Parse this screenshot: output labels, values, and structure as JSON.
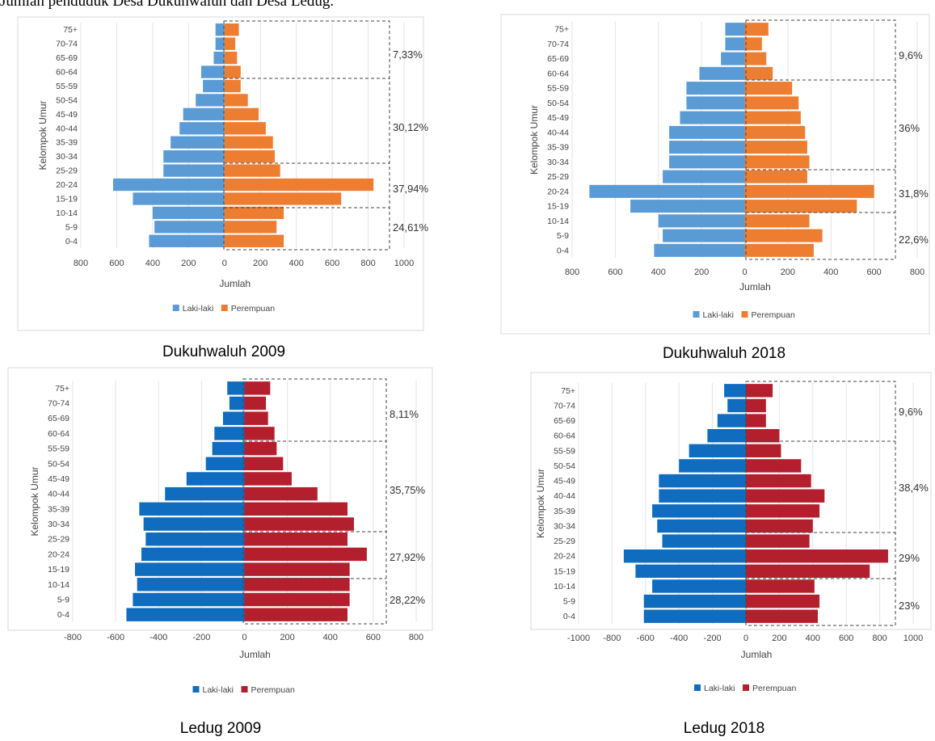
{
  "header": {
    "text": "Jumlah penduduk Desa Dukuhwaluh dan Desa Ledug."
  },
  "chart_data": [
    {
      "type": "bar",
      "subtype": "population-pyramid",
      "caption": "Dukuhwaluh 2009",
      "categories": [
        "0-4",
        "5-9",
        "10-14",
        "15-19",
        "20-24",
        "25-29",
        "30-34",
        "35-39",
        "40-44",
        "45-49",
        "50-54",
        "55-59",
        "60-64",
        "65-69",
        "70-74",
        "75+"
      ],
      "series": [
        {
          "name": "Laki-laki",
          "color": "#5b9bd5",
          "values": [
            420,
            390,
            400,
            510,
            620,
            340,
            340,
            300,
            250,
            230,
            160,
            120,
            130,
            60,
            50,
            50
          ]
        },
        {
          "name": "Perempuan",
          "color": "#ed7d31",
          "values": [
            330,
            290,
            330,
            650,
            830,
            310,
            280,
            270,
            230,
            190,
            130,
            90,
            90,
            70,
            60,
            80
          ]
        }
      ],
      "xlabel": "Jumlah",
      "ylabel": "Kelompok Umur",
      "xticks": [
        "800",
        "600",
        "400",
        "200",
        "0",
        "200",
        "400",
        "600",
        "800",
        "1000"
      ],
      "xlim": [
        -800,
        1000
      ],
      "legend": "bottom",
      "grid": true,
      "annotations": [
        "7,33%",
        "30,12%",
        "37,94%",
        "24,61%"
      ]
    },
    {
      "type": "bar",
      "subtype": "population-pyramid",
      "caption": "Dukuhwaluh 2018",
      "categories": [
        "0-4",
        "5-9",
        "10-14",
        "15-19",
        "20-24",
        "25-29",
        "30-34",
        "35-39",
        "40-44",
        "45-49",
        "50-54",
        "55-59",
        "60-64",
        "65-69",
        "70-74",
        "75+"
      ],
      "series": [
        {
          "name": "Laki-laki",
          "color": "#5b9bd5",
          "values": [
            420,
            380,
            400,
            530,
            720,
            380,
            350,
            350,
            350,
            300,
            270,
            270,
            210,
            110,
            90,
            90
          ]
        },
        {
          "name": "Perempuan",
          "color": "#ed7d31",
          "values": [
            320,
            360,
            300,
            520,
            600,
            290,
            300,
            290,
            280,
            260,
            250,
            220,
            130,
            100,
            80,
            110
          ]
        }
      ],
      "xlabel": "Jumlah",
      "ylabel": "Kelompok Umur",
      "xticks": [
        "800",
        "600",
        "400",
        "200",
        "0",
        "200",
        "400",
        "600",
        "800"
      ],
      "xlim": [
        -800,
        800
      ],
      "legend": "bottom",
      "grid": true,
      "annotations": [
        "9,6%",
        "36%",
        "31,8%",
        "22,6%"
      ]
    },
    {
      "type": "bar",
      "subtype": "population-pyramid",
      "caption": "Ledug 2009",
      "categories": [
        "0-4",
        "5-9",
        "10-14",
        "15-19",
        "20-24",
        "25-29",
        "30-34",
        "35-39",
        "40-44",
        "45-49",
        "50-54",
        "55-59",
        "60-64",
        "65-69",
        "70-74",
        "75+"
      ],
      "series": [
        {
          "name": "Laki-laki",
          "color": "#0f6cbf",
          "values": [
            -550,
            -520,
            -500,
            -510,
            -480,
            -460,
            -470,
            -490,
            -370,
            -270,
            -180,
            -150,
            -140,
            -100,
            -70,
            -80
          ]
        },
        {
          "name": "Perempuan",
          "color": "#b41f2e",
          "values": [
            480,
            490,
            490,
            490,
            570,
            480,
            510,
            480,
            340,
            220,
            180,
            150,
            140,
            110,
            100,
            120
          ]
        }
      ],
      "xlabel": "Jumlah",
      "ylabel": "Kelompok Umur",
      "xticks": [
        "-800",
        "-600",
        "-400",
        "-200",
        "0",
        "200",
        "400",
        "600",
        "800"
      ],
      "xlim": [
        -800,
        800
      ],
      "legend": "bottom",
      "grid": true,
      "annotations": [
        "8,11%",
        "35,75%",
        "27,92%",
        "28,22%"
      ]
    },
    {
      "type": "bar",
      "subtype": "population-pyramid",
      "caption": "Ledug 2018",
      "categories": [
        "0-4",
        "5-9",
        "10-14",
        "15-19",
        "20-24",
        "25-29",
        "30-34",
        "35-39",
        "40-44",
        "45-49",
        "50-54",
        "55-59",
        "60-64",
        "65-69",
        "70-74",
        "75+"
      ],
      "series": [
        {
          "name": "Laki-laki",
          "color": "#0f6cbf",
          "values": [
            -610,
            -610,
            -560,
            -660,
            -730,
            -500,
            -530,
            -560,
            -520,
            -520,
            -400,
            -340,
            -230,
            -170,
            -110,
            -130
          ]
        },
        {
          "name": "Perempuan",
          "color": "#b41f2e",
          "values": [
            430,
            440,
            410,
            740,
            850,
            380,
            400,
            440,
            470,
            390,
            330,
            210,
            200,
            120,
            120,
            160
          ]
        }
      ],
      "xlabel": "Jumlah",
      "ylabel": "Kelompok Umur",
      "xticks": [
        "-1000",
        "-800",
        "-600",
        "-400",
        "-200",
        "0",
        "200",
        "400",
        "600",
        "800",
        "1000"
      ],
      "xlim": [
        -1000,
        1000
      ],
      "legend": "bottom",
      "grid": true,
      "annotations": [
        "9,6%",
        "38,4%",
        "29%",
        "23%"
      ]
    }
  ]
}
